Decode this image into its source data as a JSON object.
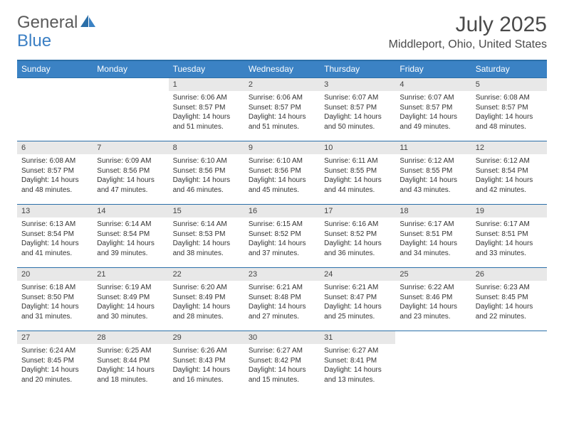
{
  "brand": {
    "word1": "General",
    "word2": "Blue"
  },
  "title": "July 2025",
  "location": "Middleport, Ohio, United States",
  "colors": {
    "header_bg": "#3b82c4",
    "header_border": "#2b6fa8",
    "daynum_bg": "#e8e8e8",
    "text": "#333333",
    "title_text": "#4a4a4a",
    "logo_gray": "#5a5a5a",
    "logo_blue": "#3b7fc4"
  },
  "dayNames": [
    "Sunday",
    "Monday",
    "Tuesday",
    "Wednesday",
    "Thursday",
    "Friday",
    "Saturday"
  ],
  "weeks": [
    [
      {
        "empty": true
      },
      {
        "empty": true
      },
      {
        "n": "1",
        "sr": "6:06 AM",
        "ss": "8:57 PM",
        "dl": "14 hours and 51 minutes."
      },
      {
        "n": "2",
        "sr": "6:06 AM",
        "ss": "8:57 PM",
        "dl": "14 hours and 51 minutes."
      },
      {
        "n": "3",
        "sr": "6:07 AM",
        "ss": "8:57 PM",
        "dl": "14 hours and 50 minutes."
      },
      {
        "n": "4",
        "sr": "6:07 AM",
        "ss": "8:57 PM",
        "dl": "14 hours and 49 minutes."
      },
      {
        "n": "5",
        "sr": "6:08 AM",
        "ss": "8:57 PM",
        "dl": "14 hours and 48 minutes."
      }
    ],
    [
      {
        "n": "6",
        "sr": "6:08 AM",
        "ss": "8:57 PM",
        "dl": "14 hours and 48 minutes."
      },
      {
        "n": "7",
        "sr": "6:09 AM",
        "ss": "8:56 PM",
        "dl": "14 hours and 47 minutes."
      },
      {
        "n": "8",
        "sr": "6:10 AM",
        "ss": "8:56 PM",
        "dl": "14 hours and 46 minutes."
      },
      {
        "n": "9",
        "sr": "6:10 AM",
        "ss": "8:56 PM",
        "dl": "14 hours and 45 minutes."
      },
      {
        "n": "10",
        "sr": "6:11 AM",
        "ss": "8:55 PM",
        "dl": "14 hours and 44 minutes."
      },
      {
        "n": "11",
        "sr": "6:12 AM",
        "ss": "8:55 PM",
        "dl": "14 hours and 43 minutes."
      },
      {
        "n": "12",
        "sr": "6:12 AM",
        "ss": "8:54 PM",
        "dl": "14 hours and 42 minutes."
      }
    ],
    [
      {
        "n": "13",
        "sr": "6:13 AM",
        "ss": "8:54 PM",
        "dl": "14 hours and 41 minutes."
      },
      {
        "n": "14",
        "sr": "6:14 AM",
        "ss": "8:54 PM",
        "dl": "14 hours and 39 minutes."
      },
      {
        "n": "15",
        "sr": "6:14 AM",
        "ss": "8:53 PM",
        "dl": "14 hours and 38 minutes."
      },
      {
        "n": "16",
        "sr": "6:15 AM",
        "ss": "8:52 PM",
        "dl": "14 hours and 37 minutes."
      },
      {
        "n": "17",
        "sr": "6:16 AM",
        "ss": "8:52 PM",
        "dl": "14 hours and 36 minutes."
      },
      {
        "n": "18",
        "sr": "6:17 AM",
        "ss": "8:51 PM",
        "dl": "14 hours and 34 minutes."
      },
      {
        "n": "19",
        "sr": "6:17 AM",
        "ss": "8:51 PM",
        "dl": "14 hours and 33 minutes."
      }
    ],
    [
      {
        "n": "20",
        "sr": "6:18 AM",
        "ss": "8:50 PM",
        "dl": "14 hours and 31 minutes."
      },
      {
        "n": "21",
        "sr": "6:19 AM",
        "ss": "8:49 PM",
        "dl": "14 hours and 30 minutes."
      },
      {
        "n": "22",
        "sr": "6:20 AM",
        "ss": "8:49 PM",
        "dl": "14 hours and 28 minutes."
      },
      {
        "n": "23",
        "sr": "6:21 AM",
        "ss": "8:48 PM",
        "dl": "14 hours and 27 minutes."
      },
      {
        "n": "24",
        "sr": "6:21 AM",
        "ss": "8:47 PM",
        "dl": "14 hours and 25 minutes."
      },
      {
        "n": "25",
        "sr": "6:22 AM",
        "ss": "8:46 PM",
        "dl": "14 hours and 23 minutes."
      },
      {
        "n": "26",
        "sr": "6:23 AM",
        "ss": "8:45 PM",
        "dl": "14 hours and 22 minutes."
      }
    ],
    [
      {
        "n": "27",
        "sr": "6:24 AM",
        "ss": "8:45 PM",
        "dl": "14 hours and 20 minutes."
      },
      {
        "n": "28",
        "sr": "6:25 AM",
        "ss": "8:44 PM",
        "dl": "14 hours and 18 minutes."
      },
      {
        "n": "29",
        "sr": "6:26 AM",
        "ss": "8:43 PM",
        "dl": "14 hours and 16 minutes."
      },
      {
        "n": "30",
        "sr": "6:27 AM",
        "ss": "8:42 PM",
        "dl": "14 hours and 15 minutes."
      },
      {
        "n": "31",
        "sr": "6:27 AM",
        "ss": "8:41 PM",
        "dl": "14 hours and 13 minutes."
      },
      {
        "empty": true
      },
      {
        "empty": true
      }
    ]
  ],
  "labels": {
    "sunrise": "Sunrise:",
    "sunset": "Sunset:",
    "daylight": "Daylight:"
  }
}
